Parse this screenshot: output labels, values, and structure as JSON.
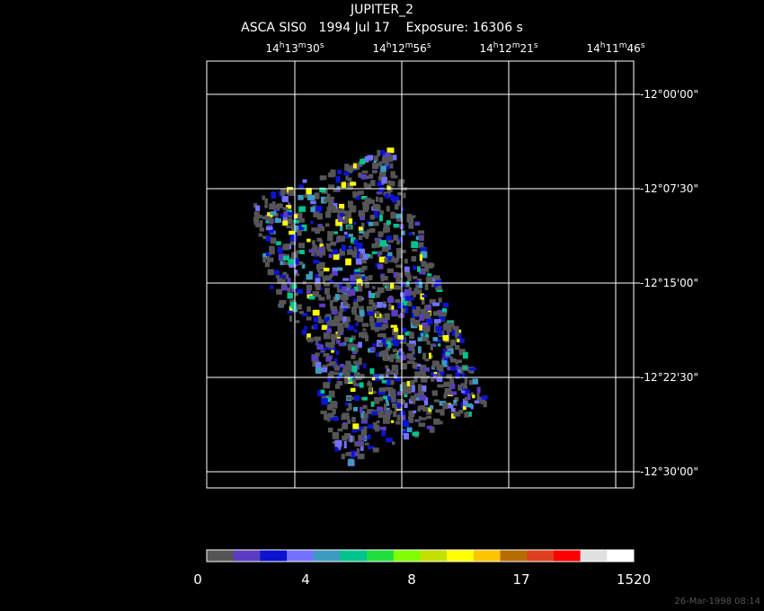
{
  "header": {
    "title": "JUPITER_2",
    "subtitle": "ASCA SIS0   1994 Jul 17    Exposure: 16306 s"
  },
  "ra_labels": [
    [
      "14",
      "h",
      "13",
      "m",
      "30",
      "s"
    ],
    [
      "14",
      "h",
      "12",
      "m",
      "56",
      "s"
    ],
    [
      "14",
      "h",
      "12",
      "m",
      "21",
      "s"
    ],
    [
      "14",
      "h",
      "11",
      "m",
      "46",
      "s"
    ]
  ],
  "dec_labels": [
    "-12°00'00\"",
    "-12°07'30\"",
    "-12°15'00\"",
    "-12°22'30\"",
    "-12°30'00\""
  ],
  "colorbar": {
    "colors": [
      "#555555",
      "#5a3cc0",
      "#0a14d0",
      "#7272ff",
      "#3c9cc0",
      "#00c48c",
      "#20e040",
      "#80ff00",
      "#c4e000",
      "#ffff00",
      "#ffc400",
      "#b86c00",
      "#e04020",
      "#ff0000",
      "#e0e0e0",
      "#ffffff"
    ],
    "labels": [
      "0",
      "4",
      "8",
      "17",
      "1520"
    ]
  },
  "footer": {
    "timestamp": "26-Mar-1998 08:14"
  }
}
